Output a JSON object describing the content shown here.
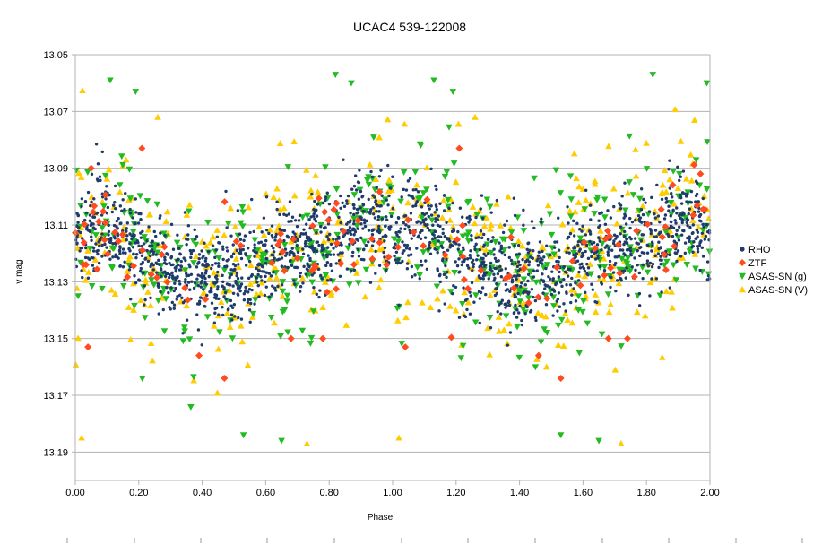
{
  "chart_data": {
    "type": "scatter",
    "title": "UCAC4 539-122008",
    "xlabel": "Phase",
    "ylabel": "v mag",
    "xlim": [
      0.0,
      2.0
    ],
    "ylim": [
      13.05,
      13.2
    ],
    "y_inverted": true,
    "grid": "horizontal",
    "legend_position": "right",
    "x_ticks": [
      "0.00",
      "0.20",
      "0.40",
      "0.60",
      "0.80",
      "1.00",
      "1.20",
      "1.40",
      "1.60",
      "1.80",
      "2.00"
    ],
    "y_ticks": [
      "13.05",
      "13.07",
      "13.09",
      "13.11",
      "13.13",
      "13.15",
      "13.17",
      "13.19"
    ],
    "series": [
      {
        "name": "RHO",
        "marker": "circle",
        "color": "#1f3b6b",
        "description_points": [
          {
            "x": 0.02,
            "y": 13.117
          },
          {
            "x": 0.05,
            "y": 13.112
          },
          {
            "x": 0.08,
            "y": 13.108
          },
          {
            "x": 0.12,
            "y": 13.11
          },
          {
            "x": 0.15,
            "y": 13.114
          },
          {
            "x": 0.19,
            "y": 13.118
          },
          {
            "x": 0.23,
            "y": 13.121
          },
          {
            "x": 0.27,
            "y": 13.124
          },
          {
            "x": 0.31,
            "y": 13.126
          },
          {
            "x": 0.35,
            "y": 13.128
          },
          {
            "x": 0.39,
            "y": 13.129
          },
          {
            "x": 0.43,
            "y": 13.129
          },
          {
            "x": 0.47,
            "y": 13.127
          },
          {
            "x": 0.51,
            "y": 13.126
          },
          {
            "x": 0.55,
            "y": 13.124
          },
          {
            "x": 0.59,
            "y": 13.121
          },
          {
            "x": 0.63,
            "y": 13.119
          },
          {
            "x": 0.67,
            "y": 13.118
          },
          {
            "x": 0.71,
            "y": 13.118
          },
          {
            "x": 0.75,
            "y": 13.117
          },
          {
            "x": 0.79,
            "y": 13.116
          },
          {
            "x": 0.83,
            "y": 13.114
          },
          {
            "x": 0.87,
            "y": 13.11
          },
          {
            "x": 0.91,
            "y": 13.108
          },
          {
            "x": 0.95,
            "y": 13.108
          },
          {
            "x": 0.99,
            "y": 13.111
          }
        ]
      },
      {
        "name": "ZTF",
        "marker": "diamond",
        "color": "#ff4b1f",
        "description_points": [
          {
            "x": 0.05,
            "y": 13.09
          },
          {
            "x": 0.04,
            "y": 13.153
          },
          {
            "x": 0.21,
            "y": 13.083
          },
          {
            "x": 0.39,
            "y": 13.156
          },
          {
            "x": 0.47,
            "y": 13.164
          },
          {
            "x": 0.68,
            "y": 13.15
          },
          {
            "x": 0.78,
            "y": 13.15
          },
          {
            "x": 1.04,
            "y": 13.153
          },
          {
            "x": 1.21,
            "y": 13.083
          },
          {
            "x": 1.46,
            "y": 13.156
          },
          {
            "x": 1.53,
            "y": 13.164
          },
          {
            "x": 1.68,
            "y": 13.15
          },
          {
            "x": 1.74,
            "y": 13.15
          },
          {
            "x": 1.97,
            "y": 13.092
          }
        ]
      },
      {
        "name": "ASAS-SN (g)",
        "marker": "triangle-down",
        "color": "#22bb22",
        "description_points": [
          {
            "x": 0.11,
            "y": 13.059
          },
          {
            "x": 0.19,
            "y": 13.063
          },
          {
            "x": 0.53,
            "y": 13.184
          },
          {
            "x": 0.65,
            "y": 13.186
          },
          {
            "x": 0.82,
            "y": 13.057
          },
          {
            "x": 0.87,
            "y": 13.06
          },
          {
            "x": 1.13,
            "y": 13.059
          },
          {
            "x": 1.19,
            "y": 13.063
          },
          {
            "x": 1.53,
            "y": 13.184
          },
          {
            "x": 1.65,
            "y": 13.186
          },
          {
            "x": 1.82,
            "y": 13.057
          },
          {
            "x": 1.99,
            "y": 13.06
          }
        ]
      },
      {
        "name": "ASAS-SN (V)",
        "marker": "triangle-up",
        "color": "#ffcc00",
        "description_points": [
          {
            "x": 0.02,
            "y": 13.185
          },
          {
            "x": 0.73,
            "y": 13.187
          },
          {
            "x": 1.02,
            "y": 13.185
          },
          {
            "x": 1.72,
            "y": 13.187
          },
          {
            "x": 0.26,
            "y": 13.072
          },
          {
            "x": 1.26,
            "y": 13.072
          }
        ]
      }
    ]
  }
}
